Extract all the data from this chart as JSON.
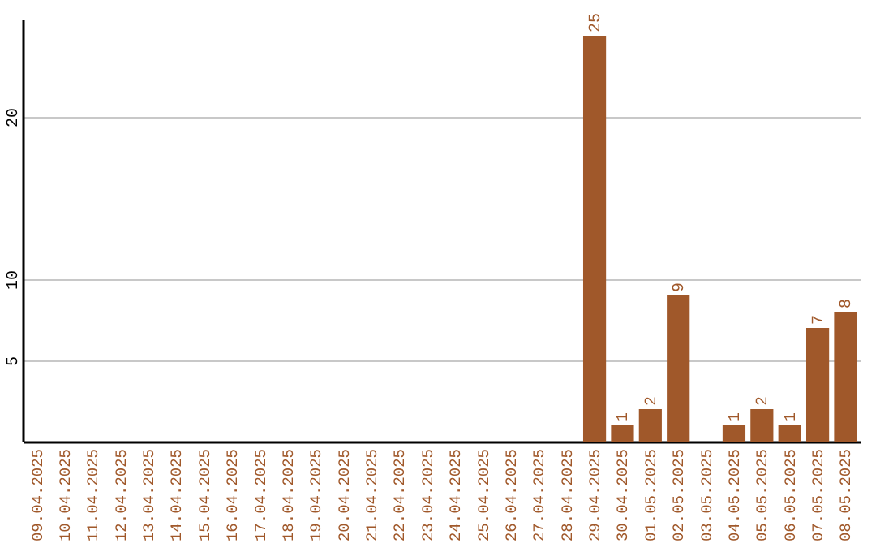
{
  "chart_data": {
    "type": "bar",
    "categories": [
      "09.04.2025",
      "10.04.2025",
      "11.04.2025",
      "12.04.2025",
      "13.04.2025",
      "14.04.2025",
      "15.04.2025",
      "16.04.2025",
      "17.04.2025",
      "18.04.2025",
      "19.04.2025",
      "20.04.2025",
      "21.04.2025",
      "22.04.2025",
      "23.04.2025",
      "24.04.2025",
      "25.04.2025",
      "26.04.2025",
      "27.04.2025",
      "28.04.2025",
      "29.04.2025",
      "30.04.2025",
      "01.05.2025",
      "02.05.2025",
      "03.05.2025",
      "04.05.2025",
      "05.05.2025",
      "06.05.2025",
      "07.05.2025",
      "08.05.2025"
    ],
    "values": [
      0,
      0,
      0,
      0,
      0,
      0,
      0,
      0,
      0,
      0,
      0,
      0,
      0,
      0,
      0,
      0,
      0,
      0,
      0,
      0,
      25,
      1,
      2,
      9,
      0,
      1,
      2,
      1,
      7,
      8
    ],
    "value_labels": [
      null,
      null,
      null,
      null,
      null,
      null,
      null,
      null,
      null,
      null,
      null,
      null,
      null,
      null,
      null,
      null,
      null,
      null,
      null,
      null,
      "25",
      "1",
      "2",
      "9",
      null,
      "1",
      "2",
      "1",
      "7",
      "8"
    ],
    "color": "#a0582a",
    "ylim": [
      0,
      26
    ],
    "yticks": [
      5,
      10,
      20
    ],
    "grid": "y"
  }
}
